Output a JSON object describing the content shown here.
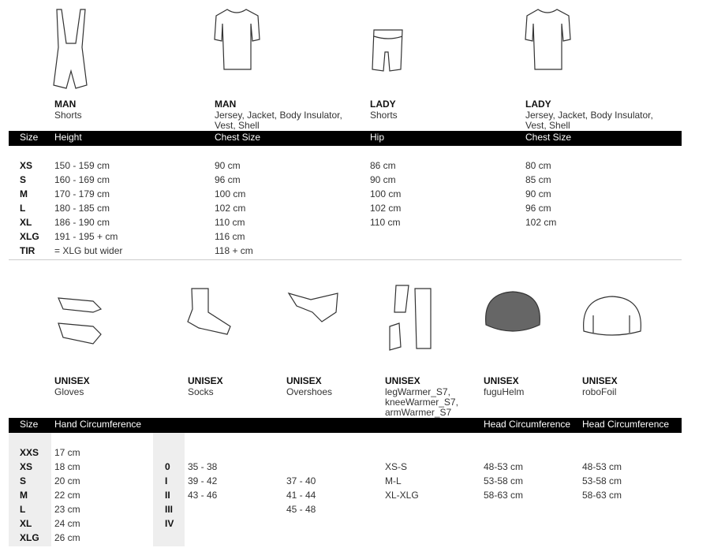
{
  "top": {
    "products": [
      {
        "gender": "MAN",
        "name": "Shorts"
      },
      {
        "gender": "MAN",
        "name": "Jersey, Jacket, Body Insulator, Vest, Shell"
      },
      {
        "gender": "LADY",
        "name": "Shorts"
      },
      {
        "gender": "LADY",
        "name": "Jersey, Jacket, Body Insulator, Vest, Shell"
      }
    ],
    "table": {
      "headers": [
        "Size",
        "Height",
        "Chest Size",
        "Hip",
        "Chest Size"
      ],
      "rows": [
        [
          "XS",
          "150 - 159 cm",
          "90 cm",
          "86 cm",
          "80 cm"
        ],
        [
          "S",
          "160 - 169 cm",
          "96 cm",
          "90 cm",
          "85 cm"
        ],
        [
          "M",
          "170 - 179 cm",
          "100 cm",
          "100 cm",
          "90 cm"
        ],
        [
          "L",
          "180 - 185 cm",
          "102 cm",
          "102 cm",
          "96 cm"
        ],
        [
          "XL",
          "186 - 190 cm",
          "110 cm",
          "110 cm",
          "102 cm"
        ],
        [
          "XLG",
          "191 - 195 + cm",
          "116 cm",
          null,
          null
        ],
        [
          "TIR",
          "= XLG but wider",
          "118 + cm",
          null,
          null
        ]
      ]
    }
  },
  "bottom": {
    "products": [
      {
        "gender": "UNISEX",
        "name": "Gloves"
      },
      {
        "gender": "UNISEX",
        "name": "Socks"
      },
      {
        "gender": "UNISEX",
        "name": "Overshoes"
      },
      {
        "gender": "UNISEX",
        "name": "legWarmer_S7, kneeWarmer_S7, armWarmer_S7"
      },
      {
        "gender": "UNISEX",
        "name": "fuguHelm"
      },
      {
        "gender": "UNISEX",
        "name": "roboFoil"
      }
    ],
    "table": {
      "headers": [
        "Size",
        "Hand Circumference",
        null,
        null,
        null,
        null,
        "Head Circumference",
        "Head Circumference"
      ],
      "rows": [
        [
          "XXS",
          "17 cm",
          null,
          null,
          null,
          null,
          null,
          null
        ],
        [
          "XS",
          "18 cm",
          "0",
          "35 - 38",
          null,
          "XS-S",
          "48-53 cm",
          "48-53 cm"
        ],
        [
          "S",
          "20 cm",
          "I",
          "39 - 42",
          "37 - 40",
          "M-L",
          "53-58 cm",
          "53-58 cm"
        ],
        [
          "M",
          "22 cm",
          "II",
          "43 - 46",
          "41 - 44",
          "XL-XLG",
          "58-63 cm",
          "58-63 cm"
        ],
        [
          "L",
          "23 cm",
          "III",
          null,
          "45 - 48",
          null,
          null,
          null
        ],
        [
          "XL",
          "24 cm",
          "IV",
          null,
          null,
          null,
          null,
          null
        ],
        [
          "XLG",
          "26 cm",
          null,
          null,
          null,
          null,
          null,
          null
        ]
      ]
    }
  }
}
